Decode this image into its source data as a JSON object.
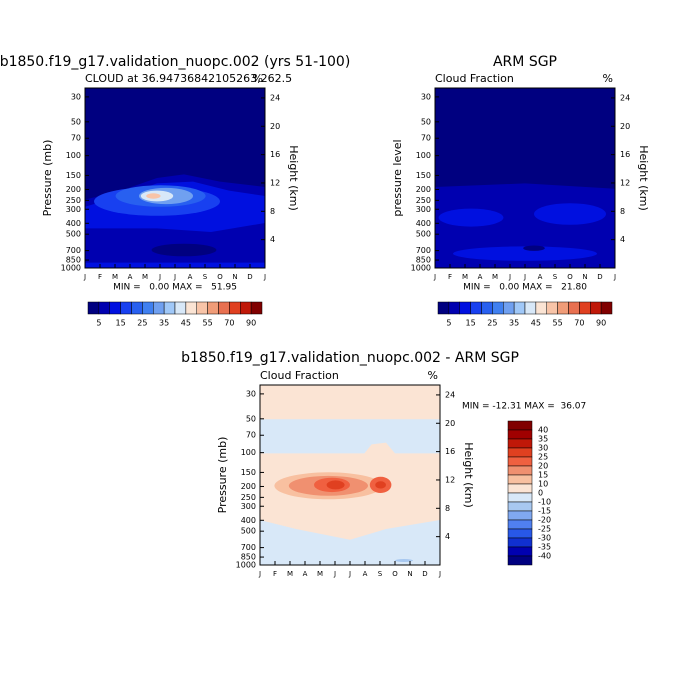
{
  "chart_data": [
    {
      "type": "contour",
      "title": "b1850.f19_g17.validation_nuopc.002 (yrs 51-100)",
      "subtitle": "CLOUD at 36.94736842105263,262.5",
      "units": "%",
      "ylabel": "Pressure (mb)",
      "y2label": "Height (km)",
      "categories": [
        "J",
        "F",
        "M",
        "A",
        "M",
        "J",
        "J",
        "A",
        "S",
        "O",
        "N",
        "D",
        "J"
      ],
      "ylim": [
        1000,
        25
      ],
      "ylog": true,
      "yticks": [
        30,
        50,
        70,
        100,
        150,
        200,
        250,
        300,
        400,
        500,
        700,
        850,
        1000
      ],
      "y2lim": [
        0,
        25.4
      ],
      "y2ticks": [
        4,
        8,
        12,
        16,
        20,
        24
      ],
      "stats": "MIN =   0.00 MAX =   51.95",
      "colorbar": {
        "orientation": "horizontal",
        "labels": [
          5,
          15,
          25,
          35,
          45,
          55,
          70,
          90
        ],
        "colors": [
          "#000080",
          "#0000b0",
          "#0010e0",
          "#1840f0",
          "#2860f0",
          "#4080f0",
          "#70a0f0",
          "#a0c8f8",
          "#d8e8f8",
          "#fbe4d4",
          "#f8c4a8",
          "#f09c78",
          "#e87050",
          "#e04020",
          "#c01808",
          "#800000"
        ]
      }
    },
    {
      "type": "contour",
      "title": "ARM SGP",
      "subtitle": "Cloud Fraction",
      "units": "%",
      "ylabel": "pressure level",
      "y2label": "Height (km)",
      "categories": [
        "J",
        "F",
        "M",
        "A",
        "M",
        "J",
        "J",
        "A",
        "S",
        "O",
        "N",
        "D",
        "J"
      ],
      "ylim": [
        1000,
        25
      ],
      "ylog": true,
      "yticks": [
        30,
        50,
        70,
        100,
        150,
        200,
        250,
        300,
        400,
        500,
        700,
        850,
        1000
      ],
      "y2lim": [
        0,
        25.4
      ],
      "y2ticks": [
        4,
        8,
        12,
        16,
        20,
        24
      ],
      "stats": "MIN =   0.00 MAX =   21.80",
      "colorbar": {
        "orientation": "horizontal",
        "labels": [
          5,
          15,
          25,
          35,
          45,
          55,
          70,
          90
        ],
        "colors": [
          "#000080",
          "#0000b0",
          "#0010e0",
          "#1840f0",
          "#2860f0",
          "#4080f0",
          "#70a0f0",
          "#a0c8f8",
          "#d8e8f8",
          "#fbe4d4",
          "#f8c4a8",
          "#f09c78",
          "#e87050",
          "#e04020",
          "#c01808",
          "#800000"
        ]
      }
    },
    {
      "type": "contour",
      "title": "b1850.f19_g17.validation_nuopc.002 - ARM SGP",
      "subtitle": "Cloud Fraction",
      "units": "%",
      "ylabel": "Pressure (mb)",
      "y2label": "Height (km)",
      "categories": [
        "J",
        "F",
        "M",
        "A",
        "M",
        "J",
        "J",
        "A",
        "S",
        "O",
        "N",
        "D",
        "J"
      ],
      "ylim": [
        1000,
        25
      ],
      "ylog": true,
      "yticks": [
        30,
        50,
        70,
        100,
        150,
        200,
        250,
        300,
        400,
        500,
        700,
        850,
        1000
      ],
      "y2lim": [
        0,
        25.4
      ],
      "y2ticks": [
        4,
        8,
        12,
        16,
        20,
        24
      ],
      "stats": "MIN = -12.31 MAX =  36.07",
      "colorbar": {
        "orientation": "vertical",
        "labels": [
          40,
          35,
          30,
          25,
          20,
          15,
          10,
          0,
          -10,
          -15,
          -20,
          -25,
          -30,
          -35,
          -40
        ],
        "colors": [
          "#800000",
          "#a00000",
          "#c01808",
          "#e04020",
          "#f06040",
          "#f09070",
          "#f8c0a0",
          "#fbe4d4",
          "#d8e8f8",
          "#a8c8f0",
          "#80a8f0",
          "#5080f0",
          "#2858e8",
          "#1030d0",
          "#0000b0",
          "#000080"
        ]
      }
    }
  ]
}
